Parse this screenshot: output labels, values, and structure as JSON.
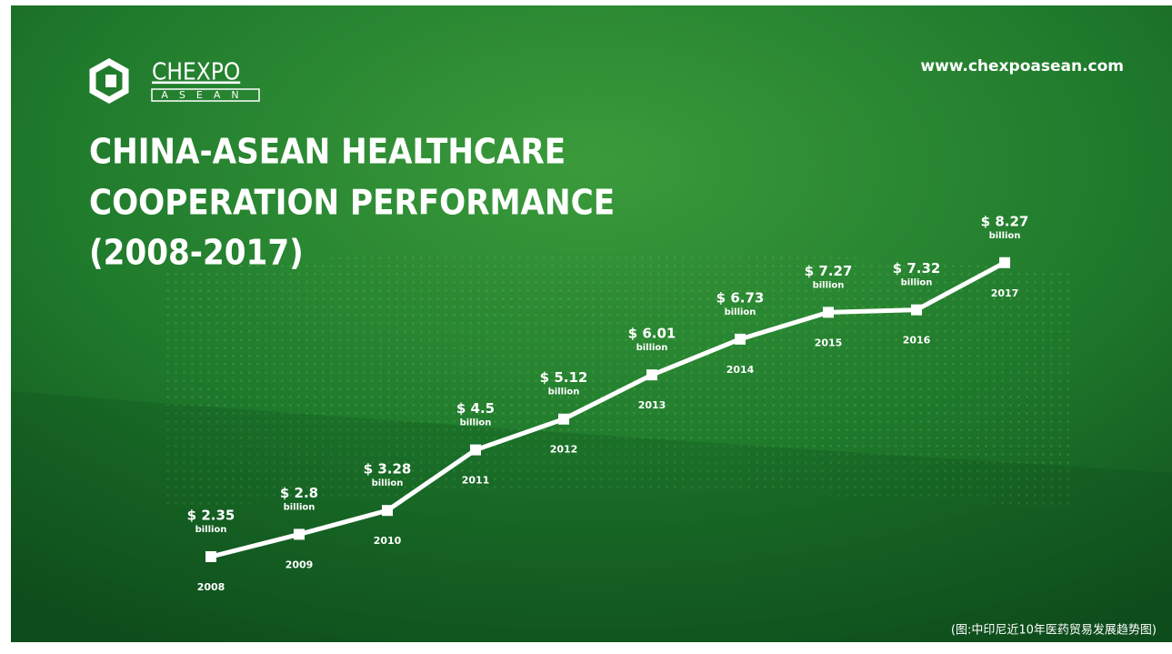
{
  "chart_data": {
    "type": "line",
    "brand": "CHEXPO",
    "brand_sub": "ASEAN",
    "url": "www.chexpoasean.com",
    "title": [
      "CHINA-ASEAN HEALTHCARE",
      "COOPERATION PERFORMANCE",
      "(2008-2017)"
    ],
    "categories": [
      "2008",
      "2009",
      "2010",
      "2011",
      "2012",
      "2013",
      "2014",
      "2015",
      "2016",
      "2017"
    ],
    "values": [
      2.35,
      2.8,
      3.28,
      4.5,
      5.12,
      6.01,
      6.73,
      7.27,
      7.32,
      8.27
    ],
    "value_labels": [
      "$ 2.35",
      "$ 2.8",
      "$ 3.28",
      "$ 4.5",
      "$ 5.12",
      "$ 6.01",
      "$ 6.73",
      "$ 7.27",
      "$ 7.32",
      "$ 8.27"
    ],
    "unit_label": "billion",
    "color": "#ffffff",
    "caption": "(图:中印尼近10年医药贸易发展趋势图)"
  }
}
